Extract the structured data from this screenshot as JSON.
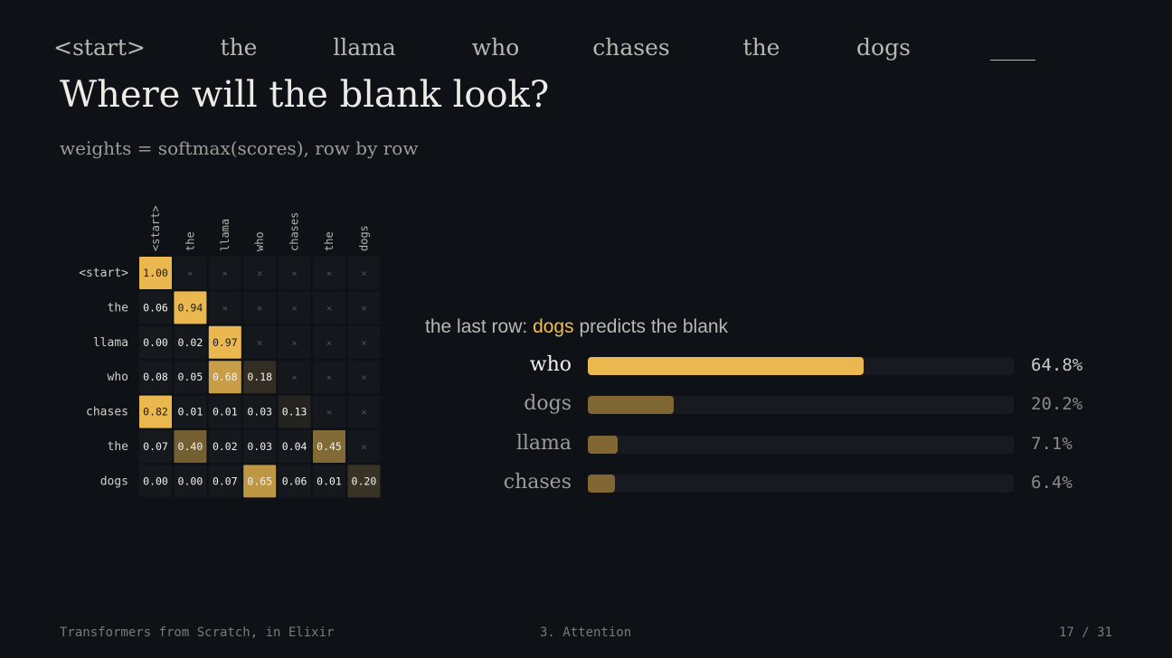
{
  "header": {
    "tokens": [
      "<start>",
      "the",
      "llama",
      "who",
      "chases",
      "the",
      "dogs",
      "____"
    ],
    "title": "Where will the blank look?",
    "subtitle": "weights = softmax(scores), row by row"
  },
  "chart_data": [
    {
      "type": "heatmap",
      "x_labels": [
        "<start>",
        "the",
        "llama",
        "who",
        "chases",
        "the",
        "dogs"
      ],
      "y_labels": [
        "<start>",
        "the",
        "llama",
        "who",
        "chases",
        "the",
        "dogs"
      ],
      "masked_symbol": "×",
      "values": [
        [
          1.0,
          null,
          null,
          null,
          null,
          null,
          null
        ],
        [
          0.06,
          0.94,
          null,
          null,
          null,
          null,
          null
        ],
        [
          0.0,
          0.02,
          0.97,
          null,
          null,
          null,
          null
        ],
        [
          0.08,
          0.05,
          0.68,
          0.18,
          null,
          null,
          null
        ],
        [
          0.82,
          0.01,
          0.01,
          0.03,
          0.13,
          null,
          null
        ],
        [
          0.07,
          0.4,
          0.02,
          0.03,
          0.04,
          0.45,
          null
        ],
        [
          0.0,
          0.0,
          0.07,
          0.65,
          0.06,
          0.01,
          0.2
        ]
      ],
      "colors": {
        "high": "#eab84f",
        "empty": "#15181d"
      }
    },
    {
      "type": "bar",
      "orientation": "horizontal",
      "caption": {
        "prefix": "the last row:",
        "highlight": "dogs",
        "suffix": "predicts the blank"
      },
      "categories": [
        "who",
        "dogs",
        "llama",
        "chases"
      ],
      "values": [
        64.8,
        20.2,
        7.1,
        6.4
      ],
      "value_labels": [
        "64.8%",
        "20.2%",
        "7.1%",
        "6.4%"
      ],
      "xlim": [
        0,
        100
      ],
      "colors": {
        "top": "#eab84f",
        "other": "#806633",
        "track": "#171a20"
      }
    }
  ],
  "footer": {
    "left": "Transformers from Scratch, in Elixir",
    "center": "3. Attention",
    "right": "17 / 31"
  }
}
